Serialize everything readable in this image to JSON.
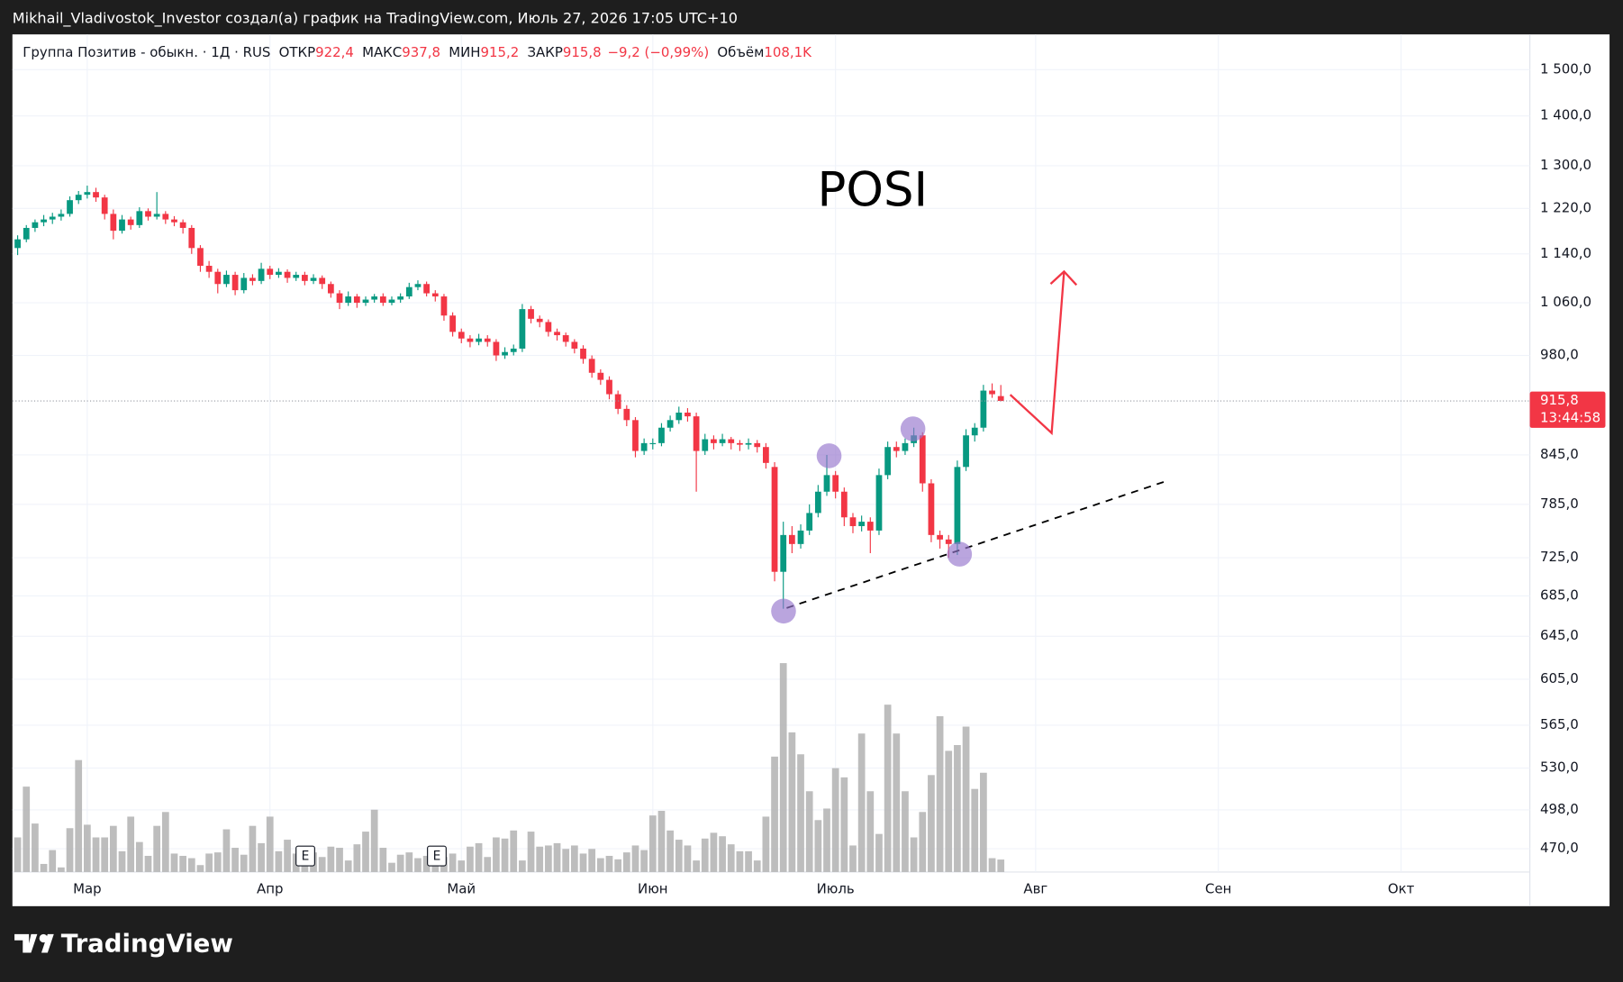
{
  "header": {
    "attribution": "Mikhail_Vladivostok_Investor создал(а) график на TradingView.com, Июль 27, 2026 17:05 UTC+10"
  },
  "footer": {
    "logo": "TradingView"
  },
  "chart_data": {
    "type": "candlestick",
    "title": "POSI",
    "legend": {
      "symbol": "Группа Позитив - обыкн. · 1Д · RUS",
      "fields": [
        {
          "label": "ОТКР",
          "value": "922,4"
        },
        {
          "label": "МАКС",
          "value": "937,8"
        },
        {
          "label": "МИН",
          "value": "915,2"
        },
        {
          "label": "ЗАКР",
          "value": "915,8"
        }
      ],
      "change": "−9,2 (−0,99%)",
      "volume_label": "Объём",
      "volume_value": "108,1K"
    },
    "up_color": "#089981",
    "down_color": "#f23645",
    "volume_color": "#b2b2b2",
    "log_scale": true,
    "grid": true,
    "ylim": [
      454,
      1576
    ],
    "yticks": [
      {
        "value": 1500,
        "label": "1 500,0"
      },
      {
        "value": 1400,
        "label": "1 400,0"
      },
      {
        "value": 1300,
        "label": "1 300,0"
      },
      {
        "value": 1220,
        "label": "1 220,0"
      },
      {
        "value": 1140,
        "label": "1 140,0"
      },
      {
        "value": 1060,
        "label": "1 060,0"
      },
      {
        "value": 980,
        "label": "980,0"
      },
      {
        "value": 845,
        "label": "845,0"
      },
      {
        "value": 785,
        "label": "785,0"
      },
      {
        "value": 725,
        "label": "725,0"
      },
      {
        "value": 685,
        "label": "685,0"
      },
      {
        "value": 645,
        "label": "645,0"
      },
      {
        "value": 605,
        "label": "605,0"
      },
      {
        "value": 565,
        "label": "565,0"
      },
      {
        "value": 530,
        "label": "530,0"
      },
      {
        "value": 498,
        "label": "498,0"
      },
      {
        "value": 470,
        "label": "470,0"
      }
    ],
    "xlim": [
      -0.6,
      173.8
    ],
    "xticks": [
      {
        "value": 8,
        "label": "Мар"
      },
      {
        "value": 29,
        "label": "Апр"
      },
      {
        "value": 51,
        "label": "Май"
      },
      {
        "value": 73,
        "label": "Июн"
      },
      {
        "value": 94,
        "label": "Июль"
      },
      {
        "value": 117,
        "label": "Авг"
      },
      {
        "value": 138,
        "label": "Сен"
      },
      {
        "value": 159,
        "label": "Окт"
      }
    ],
    "last_price": {
      "value": 915.8,
      "label": "915,8"
    },
    "countdown": "13:44:58",
    "earnings_markers": [
      "E",
      "E"
    ],
    "ohlc": [
      [
        1150,
        1172,
        1138,
        1165
      ],
      [
        1165,
        1190,
        1160,
        1185
      ],
      [
        1185,
        1200,
        1178,
        1195
      ],
      [
        1195,
        1208,
        1188,
        1200
      ],
      [
        1200,
        1212,
        1192,
        1205
      ],
      [
        1205,
        1218,
        1198,
        1210
      ],
      [
        1210,
        1242,
        1205,
        1235
      ],
      [
        1235,
        1252,
        1228,
        1245
      ],
      [
        1245,
        1262,
        1238,
        1250
      ],
      [
        1250,
        1258,
        1232,
        1240
      ],
      [
        1240,
        1245,
        1200,
        1210
      ],
      [
        1210,
        1218,
        1165,
        1180
      ],
      [
        1180,
        1208,
        1175,
        1200
      ],
      [
        1200,
        1205,
        1182,
        1190
      ],
      [
        1190,
        1222,
        1185,
        1215
      ],
      [
        1215,
        1220,
        1198,
        1205
      ],
      [
        1205,
        1250,
        1200,
        1210
      ],
      [
        1210,
        1215,
        1192,
        1200
      ],
      [
        1200,
        1206,
        1188,
        1195
      ],
      [
        1195,
        1200,
        1175,
        1185
      ],
      [
        1185,
        1190,
        1140,
        1150
      ],
      [
        1150,
        1155,
        1110,
        1120
      ],
      [
        1120,
        1128,
        1100,
        1110
      ],
      [
        1110,
        1115,
        1075,
        1090
      ],
      [
        1090,
        1112,
        1085,
        1105
      ],
      [
        1105,
        1110,
        1072,
        1080
      ],
      [
        1080,
        1108,
        1075,
        1100
      ],
      [
        1100,
        1106,
        1088,
        1095
      ],
      [
        1095,
        1125,
        1090,
        1115
      ],
      [
        1115,
        1120,
        1098,
        1105
      ],
      [
        1105,
        1116,
        1100,
        1110
      ],
      [
        1110,
        1114,
        1092,
        1100
      ],
      [
        1100,
        1110,
        1095,
        1105
      ],
      [
        1105,
        1110,
        1088,
        1095
      ],
      [
        1095,
        1106,
        1090,
        1100
      ],
      [
        1100,
        1104,
        1082,
        1090
      ],
      [
        1090,
        1094,
        1068,
        1075
      ],
      [
        1075,
        1080,
        1050,
        1060
      ],
      [
        1060,
        1078,
        1055,
        1070
      ],
      [
        1070,
        1074,
        1052,
        1060
      ],
      [
        1060,
        1070,
        1055,
        1065
      ],
      [
        1065,
        1074,
        1060,
        1070
      ],
      [
        1070,
        1075,
        1055,
        1060
      ],
      [
        1060,
        1070,
        1056,
        1065
      ],
      [
        1065,
        1075,
        1060,
        1070
      ],
      [
        1070,
        1092,
        1066,
        1085
      ],
      [
        1085,
        1096,
        1080,
        1090
      ],
      [
        1090,
        1094,
        1070,
        1075
      ],
      [
        1075,
        1080,
        1062,
        1070
      ],
      [
        1070,
        1074,
        1032,
        1040
      ],
      [
        1040,
        1045,
        1008,
        1015
      ],
      [
        1015,
        1020,
        998,
        1005
      ],
      [
        1005,
        1010,
        992,
        1000
      ],
      [
        1000,
        1012,
        995,
        1005
      ],
      [
        1005,
        1010,
        993,
        1000
      ],
      [
        1000,
        1004,
        972,
        980
      ],
      [
        980,
        992,
        975,
        985
      ],
      [
        985,
        996,
        980,
        990
      ],
      [
        990,
        1058,
        985,
        1050
      ],
      [
        1050,
        1055,
        1028,
        1035
      ],
      [
        1035,
        1040,
        1022,
        1030
      ],
      [
        1030,
        1034,
        1008,
        1015
      ],
      [
        1015,
        1020,
        1002,
        1010
      ],
      [
        1010,
        1014,
        993,
        1000
      ],
      [
        1000,
        1004,
        983,
        990
      ],
      [
        990,
        995,
        968,
        975
      ],
      [
        975,
        980,
        948,
        955
      ],
      [
        955,
        960,
        938,
        945
      ],
      [
        945,
        950,
        918,
        925
      ],
      [
        925,
        930,
        898,
        905
      ],
      [
        905,
        910,
        882,
        890
      ],
      [
        890,
        894,
        842,
        850
      ],
      [
        850,
        866,
        845,
        860
      ],
      [
        860,
        866,
        852,
        860
      ],
      [
        860,
        886,
        856,
        880
      ],
      [
        880,
        896,
        875,
        890
      ],
      [
        890,
        908,
        885,
        900
      ],
      [
        900,
        906,
        888,
        895
      ],
      [
        895,
        900,
        800,
        850
      ],
      [
        850,
        872,
        845,
        865
      ],
      [
        865,
        870,
        852,
        860
      ],
      [
        860,
        872,
        856,
        865
      ],
      [
        865,
        868,
        852,
        860
      ],
      [
        860,
        864,
        850,
        858
      ],
      [
        858,
        866,
        852,
        860
      ],
      [
        860,
        864,
        848,
        855
      ],
      [
        855,
        860,
        828,
        835
      ],
      [
        830,
        836,
        700,
        710
      ],
      [
        710,
        765,
        672,
        750
      ],
      [
        750,
        760,
        730,
        740
      ],
      [
        740,
        762,
        735,
        755
      ],
      [
        755,
        785,
        750,
        775
      ],
      [
        775,
        808,
        770,
        800
      ],
      [
        800,
        845,
        795,
        820
      ],
      [
        820,
        825,
        792,
        800
      ],
      [
        800,
        805,
        760,
        770
      ],
      [
        770,
        775,
        752,
        760
      ],
      [
        760,
        772,
        754,
        765
      ],
      [
        765,
        770,
        730,
        755
      ],
      [
        755,
        828,
        750,
        820
      ],
      [
        820,
        862,
        815,
        855
      ],
      [
        855,
        862,
        842,
        850
      ],
      [
        850,
        866,
        845,
        860
      ],
      [
        860,
        880,
        855,
        870
      ],
      [
        870,
        874,
        800,
        810
      ],
      [
        810,
        815,
        742,
        750
      ],
      [
        750,
        755,
        735,
        745
      ],
      [
        745,
        750,
        725,
        740
      ],
      [
        740,
        838,
        728,
        830
      ],
      [
        830,
        878,
        825,
        870
      ],
      [
        870,
        886,
        862,
        880
      ],
      [
        880,
        938,
        875,
        930
      ],
      [
        930,
        940,
        920,
        925
      ],
      [
        922.4,
        937.8,
        915.2,
        915.8
      ]
    ],
    "volume": [
      300000,
      740000,
      420000,
      70000,
      190000,
      40000,
      380000,
      970000,
      410000,
      300000,
      300000,
      400000,
      180000,
      480000,
      260000,
      140000,
      400000,
      520000,
      160000,
      140000,
      120000,
      60000,
      160000,
      170000,
      370000,
      210000,
      150000,
      400000,
      250000,
      480000,
      180000,
      280000,
      160000,
      210000,
      170000,
      130000,
      220000,
      210000,
      100000,
      240000,
      350000,
      540000,
      210000,
      80000,
      150000,
      170000,
      120000,
      140000,
      160000,
      130000,
      160000,
      100000,
      220000,
      250000,
      130000,
      300000,
      290000,
      360000,
      100000,
      350000,
      220000,
      230000,
      250000,
      200000,
      230000,
      160000,
      200000,
      120000,
      140000,
      110000,
      170000,
      230000,
      190000,
      490000,
      530000,
      360000,
      280000,
      230000,
      100000,
      290000,
      340000,
      310000,
      240000,
      180000,
      180000,
      100000,
      480000,
      1000000,
      1810000,
      1210000,
      1020000,
      700000,
      450000,
      550000,
      900000,
      820000,
      230000,
      1200000,
      700000,
      330000,
      1450000,
      1200000,
      700000,
      300000,
      520000,
      840000,
      1350000,
      1050000,
      1100000,
      1260000,
      720000,
      860000,
      120000,
      108100
    ]
  }
}
